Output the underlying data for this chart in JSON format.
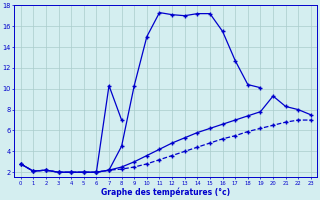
{
  "x": [
    0,
    1,
    2,
    3,
    4,
    5,
    6,
    7,
    8,
    9,
    10,
    11,
    12,
    13,
    14,
    15,
    16,
    17,
    18,
    19,
    20,
    21,
    22,
    23
  ],
  "line_main": [
    2.8,
    2.1,
    2.2,
    2.0,
    2.0,
    2.0,
    2.0,
    2.2,
    4.5,
    10.3,
    15.0,
    17.3,
    17.1,
    17.0,
    17.2,
    17.2,
    15.5,
    12.7,
    10.4,
    10.1,
    null,
    null,
    null,
    null
  ],
  "line_spike": [
    null,
    null,
    null,
    null,
    null,
    null,
    2.0,
    10.3,
    7.0,
    null,
    null,
    null,
    null,
    null,
    null,
    null,
    null,
    null,
    null,
    null,
    null,
    null,
    null,
    null
  ],
  "line_low1": [
    2.8,
    2.1,
    2.2,
    2.0,
    2.0,
    2.0,
    2.0,
    2.2,
    2.3,
    2.5,
    2.8,
    3.2,
    3.6,
    4.0,
    4.4,
    4.8,
    5.2,
    5.5,
    5.9,
    6.2,
    6.5,
    6.8,
    7.0,
    7.0
  ],
  "line_low2": [
    2.8,
    2.1,
    2.2,
    2.0,
    2.0,
    2.0,
    2.0,
    2.2,
    2.5,
    3.0,
    3.6,
    4.2,
    4.8,
    5.3,
    5.8,
    6.2,
    6.6,
    7.0,
    7.4,
    7.8,
    9.3,
    8.3,
    8.0,
    7.5
  ],
  "xlim": [
    -0.5,
    23.5
  ],
  "ylim": [
    1.5,
    18
  ],
  "xtick_labels": [
    "0",
    "1",
    "2",
    "3",
    "4",
    "5",
    "6",
    "7",
    "8",
    "9",
    "10",
    "11",
    "12",
    "13",
    "14",
    "15",
    "16",
    "17",
    "18",
    "19",
    "20",
    "21",
    "22",
    "23"
  ],
  "ytick_labels": [
    "2",
    "4",
    "6",
    "8",
    "10",
    "12",
    "14",
    "16",
    "18"
  ],
  "yticks": [
    2,
    4,
    6,
    8,
    10,
    12,
    14,
    16,
    18
  ],
  "xlabel": "Graphe des températures (°c)",
  "line_color": "#0000cc",
  "bg_color": "#d4eef0",
  "grid_color": "#aacccc",
  "marker": "+"
}
